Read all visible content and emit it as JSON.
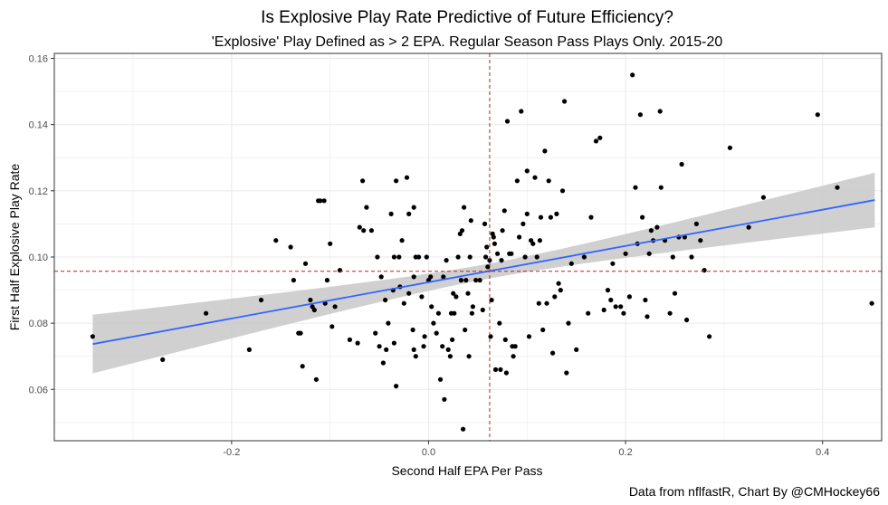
{
  "chart_data": {
    "type": "scatter",
    "title": "Is Explosive Play Rate Predictive of Future Efficiency?",
    "subtitle": "'Explosive' Play Defined as > 2 EPA. Regular Season Pass Plays Only. 2015-20",
    "xlabel": "Second Half EPA Per Pass",
    "ylabel": "First Half Explosive Play Rate",
    "caption": "Data from nflfastR, Chart By @CMHockey66",
    "xlim": [
      -0.38,
      0.46
    ],
    "ylim": [
      0.0445,
      0.1615
    ],
    "x_ticks": [
      -0.2,
      0.0,
      0.2,
      0.4
    ],
    "x_tick_labels": [
      "-0.2",
      "0.0",
      "0.2",
      "0.4"
    ],
    "y_ticks": [
      0.06,
      0.08,
      0.1,
      0.12,
      0.14,
      0.16
    ],
    "y_tick_labels": [
      "0.06",
      "0.08",
      "0.10",
      "0.12",
      "0.14",
      "0.16"
    ],
    "grid": true,
    "mean_x": 0.062,
    "mean_y": 0.0957,
    "regression": {
      "x_start": -0.341,
      "y_start": 0.0737,
      "x_end": 0.453,
      "y_end": 0.1172,
      "ci_start": [
        0.0649,
        0.0826
      ],
      "ci_mid": [
        0.0935,
        0.098
      ],
      "ci_end": [
        0.1092,
        0.1257
      ],
      "mid_x": 0.062
    },
    "colors": {
      "points": "#000000",
      "regression_line": "#3366ff",
      "ci_band": "#c8c8c8",
      "mean_lines": "#b22222",
      "panel_border": "#333333",
      "grid": "#ebebeb"
    },
    "points": [
      [
        -0.341,
        0.076
      ],
      [
        -0.27,
        0.069
      ],
      [
        -0.226,
        0.083
      ],
      [
        -0.182,
        0.072
      ],
      [
        -0.17,
        0.087
      ],
      [
        -0.155,
        0.105
      ],
      [
        -0.14,
        0.103
      ],
      [
        -0.137,
        0.093
      ],
      [
        -0.132,
        0.077
      ],
      [
        -0.13,
        0.077
      ],
      [
        -0.128,
        0.067
      ],
      [
        -0.125,
        0.098
      ],
      [
        -0.12,
        0.087
      ],
      [
        -0.118,
        0.085
      ],
      [
        -0.116,
        0.084
      ],
      [
        -0.114,
        0.063
      ],
      [
        -0.112,
        0.117
      ],
      [
        -0.11,
        0.117
      ],
      [
        -0.106,
        0.117
      ],
      [
        -0.105,
        0.086
      ],
      [
        -0.103,
        0.093
      ],
      [
        -0.1,
        0.104
      ],
      [
        -0.098,
        0.079
      ],
      [
        -0.095,
        0.085
      ],
      [
        -0.09,
        0.096
      ],
      [
        -0.08,
        0.075
      ],
      [
        -0.072,
        0.074
      ],
      [
        -0.07,
        0.109
      ],
      [
        -0.066,
        0.108
      ],
      [
        -0.067,
        0.123
      ],
      [
        -0.063,
        0.115
      ],
      [
        -0.058,
        0.108
      ],
      [
        -0.054,
        0.077
      ],
      [
        -0.052,
        0.1
      ],
      [
        -0.05,
        0.073
      ],
      [
        -0.048,
        0.094
      ],
      [
        -0.046,
        0.068
      ],
      [
        -0.044,
        0.087
      ],
      [
        -0.043,
        0.072
      ],
      [
        -0.041,
        0.08
      ],
      [
        -0.038,
        0.113
      ],
      [
        -0.036,
        0.09
      ],
      [
        -0.035,
        0.074
      ],
      [
        -0.035,
        0.1
      ],
      [
        -0.033,
        0.123
      ],
      [
        -0.033,
        0.061
      ],
      [
        -0.03,
        0.1
      ],
      [
        -0.029,
        0.091
      ],
      [
        -0.027,
        0.105
      ],
      [
        -0.025,
        0.086
      ],
      [
        -0.022,
        0.124
      ],
      [
        -0.02,
        0.089
      ],
      [
        -0.016,
        0.078
      ],
      [
        -0.015,
        0.072
      ],
      [
        -0.015,
        0.094
      ],
      [
        -0.013,
        0.07
      ],
      [
        -0.01,
        0.1
      ],
      [
        -0.007,
        0.088
      ],
      [
        -0.005,
        0.073
      ],
      [
        -0.004,
        0.076
      ],
      [
        -0.002,
        0.1
      ],
      [
        0.0,
        0.093
      ],
      [
        -0.02,
        0.113
      ],
      [
        -0.015,
        0.115
      ],
      [
        -0.013,
        0.1
      ],
      [
        0.002,
        0.094
      ],
      [
        0.003,
        0.085
      ],
      [
        0.005,
        0.08
      ],
      [
        0.008,
        0.077
      ],
      [
        0.01,
        0.083
      ],
      [
        0.012,
        0.063
      ],
      [
        0.014,
        0.073
      ],
      [
        0.015,
        0.094
      ],
      [
        0.016,
        0.057
      ],
      [
        0.018,
        0.099
      ],
      [
        0.02,
        0.072
      ],
      [
        0.022,
        0.07
      ],
      [
        0.023,
        0.083
      ],
      [
        0.024,
        0.075
      ],
      [
        0.025,
        0.089
      ],
      [
        0.026,
        0.083
      ],
      [
        0.028,
        0.088
      ],
      [
        0.03,
        0.1
      ],
      [
        0.032,
        0.107
      ],
      [
        0.033,
        0.093
      ],
      [
        0.034,
        0.108
      ],
      [
        0.035,
        0.048
      ],
      [
        0.036,
        0.115
      ],
      [
        0.037,
        0.078
      ],
      [
        0.038,
        0.093
      ],
      [
        0.04,
        0.089
      ],
      [
        0.041,
        0.07
      ],
      [
        0.042,
        0.1
      ],
      [
        0.043,
        0.111
      ],
      [
        0.044,
        0.083
      ],
      [
        0.045,
        0.085
      ],
      [
        0.048,
        0.093
      ],
      [
        0.052,
        0.093
      ],
      [
        0.055,
        0.084
      ],
      [
        0.057,
        0.11
      ],
      [
        0.058,
        0.1
      ],
      [
        0.059,
        0.103
      ],
      [
        0.06,
        0.097
      ],
      [
        0.062,
        0.099
      ],
      [
        0.063,
        0.076
      ],
      [
        0.064,
        0.087
      ],
      [
        0.065,
        0.107
      ],
      [
        0.066,
        0.106
      ],
      [
        0.067,
        0.104
      ],
      [
        0.068,
        0.066
      ],
      [
        0.07,
        0.101
      ],
      [
        0.072,
        0.08
      ],
      [
        0.073,
        0.066
      ],
      [
        0.074,
        0.099
      ],
      [
        0.075,
        0.108
      ],
      [
        0.077,
        0.114
      ],
      [
        0.078,
        0.075
      ],
      [
        0.079,
        0.065
      ],
      [
        0.08,
        0.141
      ],
      [
        0.082,
        0.101
      ],
      [
        0.084,
        0.101
      ],
      [
        0.085,
        0.073
      ],
      [
        0.086,
        0.07
      ],
      [
        0.088,
        0.073
      ],
      [
        0.09,
        0.123
      ],
      [
        0.092,
        0.106
      ],
      [
        0.094,
        0.144
      ],
      [
        0.096,
        0.11
      ],
      [
        0.098,
        0.1
      ],
      [
        0.1,
        0.113
      ],
      [
        0.102,
        0.076
      ],
      [
        0.104,
        0.105
      ],
      [
        0.106,
        0.104
      ],
      [
        0.108,
        0.124
      ],
      [
        0.11,
        0.1
      ],
      [
        0.112,
        0.086
      ],
      [
        0.114,
        0.112
      ],
      [
        0.116,
        0.078
      ],
      [
        0.118,
        0.132
      ],
      [
        0.12,
        0.086
      ],
      [
        0.122,
        0.123
      ],
      [
        0.124,
        0.112
      ],
      [
        0.126,
        0.071
      ],
      [
        0.128,
        0.088
      ],
      [
        0.13,
        0.113
      ],
      [
        0.132,
        0.092
      ],
      [
        0.134,
        0.09
      ],
      [
        0.136,
        0.12
      ],
      [
        0.138,
        0.147
      ],
      [
        0.14,
        0.065
      ],
      [
        0.142,
        0.08
      ],
      [
        0.145,
        0.098
      ],
      [
        0.15,
        0.072
      ],
      [
        0.158,
        0.1
      ],
      [
        0.162,
        0.083
      ],
      [
        0.165,
        0.112
      ],
      [
        0.17,
        0.135
      ],
      [
        0.174,
        0.136
      ],
      [
        0.178,
        0.084
      ],
      [
        0.182,
        0.09
      ],
      [
        0.185,
        0.087
      ],
      [
        0.187,
        0.098
      ],
      [
        0.19,
        0.085
      ],
      [
        0.195,
        0.085
      ],
      [
        0.198,
        0.083
      ],
      [
        0.2,
        0.101
      ],
      [
        0.204,
        0.088
      ],
      [
        0.207,
        0.155
      ],
      [
        0.21,
        0.121
      ],
      [
        0.212,
        0.104
      ],
      [
        0.215,
        0.143
      ],
      [
        0.217,
        0.112
      ],
      [
        0.22,
        0.087
      ],
      [
        0.222,
        0.082
      ],
      [
        0.224,
        0.101
      ],
      [
        0.226,
        0.108
      ],
      [
        0.228,
        0.105
      ],
      [
        0.232,
        0.109
      ],
      [
        0.235,
        0.144
      ],
      [
        0.236,
        0.121
      ],
      [
        0.24,
        0.105
      ],
      [
        0.245,
        0.083
      ],
      [
        0.248,
        0.1
      ],
      [
        0.25,
        0.089
      ],
      [
        0.254,
        0.106
      ],
      [
        0.257,
        0.128
      ],
      [
        0.26,
        0.106
      ],
      [
        0.262,
        0.081
      ],
      [
        0.267,
        0.1
      ],
      [
        0.272,
        0.11
      ],
      [
        0.276,
        0.105
      ],
      [
        0.28,
        0.096
      ],
      [
        0.285,
        0.076
      ],
      [
        0.306,
        0.133
      ],
      [
        0.325,
        0.109
      ],
      [
        0.34,
        0.118
      ],
      [
        0.395,
        0.143
      ],
      [
        0.415,
        0.121
      ],
      [
        0.45,
        0.086
      ],
      [
        0.1,
        0.126
      ],
      [
        0.113,
        0.105
      ]
    ]
  }
}
